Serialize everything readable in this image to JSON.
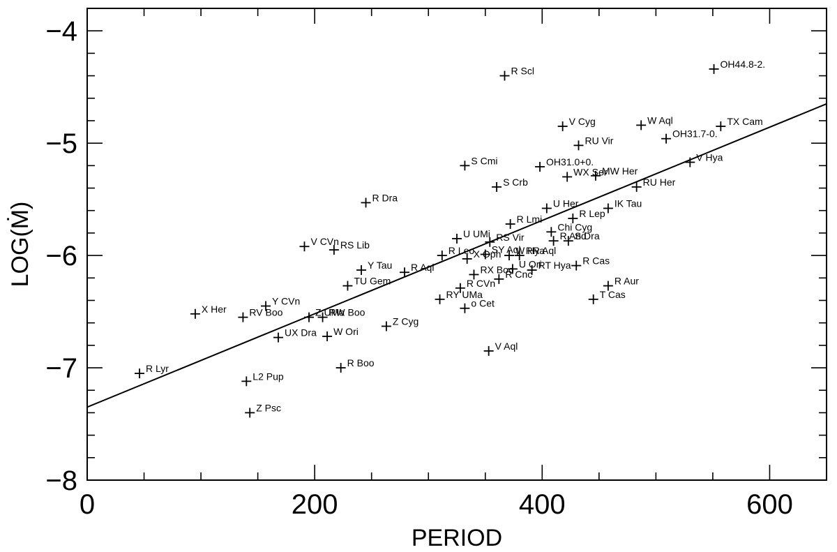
{
  "chart_data": {
    "type": "scatter",
    "title": "",
    "xlabel": "PERIOD",
    "ylabel": "LOG(Ṁ)",
    "xlim": [
      0,
      650
    ],
    "ylim": [
      -8,
      -3.8
    ],
    "x_ticks": [
      {
        "value": 0,
        "label": "0"
      },
      {
        "value": 200,
        "label": "200"
      },
      {
        "value": 400,
        "label": "400"
      },
      {
        "value": 600,
        "label": "600"
      }
    ],
    "y_ticks": [
      {
        "value": -4,
        "label": "−4"
      },
      {
        "value": -5,
        "label": "−5"
      },
      {
        "value": -6,
        "label": "−6"
      },
      {
        "value": -7,
        "label": "−7"
      },
      {
        "value": -8,
        "label": "−8"
      }
    ],
    "x_minor_step": 50,
    "y_minor_step": 0.2,
    "fit_line": {
      "x": [
        0,
        650
      ],
      "y": [
        -7.35,
        -4.65
      ]
    },
    "points": [
      {
        "name": "R Lyr",
        "x": 46,
        "y": -7.05
      },
      {
        "name": "X Her",
        "x": 95,
        "y": -6.52
      },
      {
        "name": "RV Boo",
        "x": 137,
        "y": -6.55
      },
      {
        "name": "Y CVn",
        "x": 157,
        "y": -6.45
      },
      {
        "name": "L2 Pup",
        "x": 140,
        "y": -7.12
      },
      {
        "name": "Z Psc",
        "x": 143,
        "y": -7.4
      },
      {
        "name": "UX Dra",
        "x": 168,
        "y": -6.73
      },
      {
        "name": "V CVn",
        "x": 191,
        "y": -5.92
      },
      {
        "name": "RS Lib",
        "x": 217,
        "y": -5.95
      },
      {
        "name": "Z UMa",
        "x": 195,
        "y": -6.55
      },
      {
        "name": "RW Boo",
        "x": 207,
        "y": -6.55
      },
      {
        "name": "W Ori",
        "x": 211,
        "y": -6.72
      },
      {
        "name": "R Boo",
        "x": 223,
        "y": -7.0
      },
      {
        "name": "TU Gem",
        "x": 229,
        "y": -6.27
      },
      {
        "name": "Y Tau",
        "x": 241,
        "y": -6.13
      },
      {
        "name": "R Dra",
        "x": 245,
        "y": -5.53
      },
      {
        "name": "Z Cyg",
        "x": 263,
        "y": -6.63
      },
      {
        "name": "R Aql",
        "x": 279,
        "y": -6.15
      },
      {
        "name": "RY UMa",
        "x": 310,
        "y": -6.39
      },
      {
        "name": "R Leo",
        "x": 312,
        "y": -6.0
      },
      {
        "name": "U UMi",
        "x": 325,
        "y": -5.85
      },
      {
        "name": "R CVn",
        "x": 328,
        "y": -6.29
      },
      {
        "name": "S Cmi",
        "x": 332,
        "y": -5.2
      },
      {
        "name": "o Cet",
        "x": 332,
        "y": -6.47
      },
      {
        "name": "X Oph",
        "x": 334,
        "y": -6.03
      },
      {
        "name": "RX Boo",
        "x": 340,
        "y": -6.17
      },
      {
        "name": "SY Aql",
        "x": 350,
        "y": -5.99
      },
      {
        "name": "V Aql",
        "x": 353,
        "y": -6.85
      },
      {
        "name": "RS Vir",
        "x": 354,
        "y": -5.88
      },
      {
        "name": "S Crb",
        "x": 360,
        "y": -5.39
      },
      {
        "name": "R Cnc",
        "x": 362,
        "y": -6.21
      },
      {
        "name": "R Scl",
        "x": 367,
        "y": -4.4
      },
      {
        "name": "W Hya",
        "x": 371,
        "y": -6.0
      },
      {
        "name": "R Lmi",
        "x": 372,
        "y": -5.72
      },
      {
        "name": "U Ori",
        "x": 374,
        "y": -6.12
      },
      {
        "name": "RR Aql",
        "x": 380,
        "y": -6.0
      },
      {
        "name": "RT Hya",
        "x": 391,
        "y": -6.13
      },
      {
        "name": "OH31.0+0.",
        "x": 398,
        "y": -5.21
      },
      {
        "name": "U Her",
        "x": 404,
        "y": -5.58
      },
      {
        "name": "Chi Cyg",
        "x": 408,
        "y": -5.79
      },
      {
        "name": "R And",
        "x": 410,
        "y": -5.87
      },
      {
        "name": "V Cyg",
        "x": 418,
        "y": -4.85
      },
      {
        "name": "WX Ser",
        "x": 422,
        "y": -5.3
      },
      {
        "name": "S Dra",
        "x": 423,
        "y": -5.87
      },
      {
        "name": "R Lep",
        "x": 427,
        "y": -5.67
      },
      {
        "name": "R Cas",
        "x": 430,
        "y": -6.09
      },
      {
        "name": "RU Vir",
        "x": 432,
        "y": -5.02
      },
      {
        "name": "T Cas",
        "x": 445,
        "y": -6.39
      },
      {
        "name": "MW Her",
        "x": 447,
        "y": -5.29
      },
      {
        "name": "IK Tau",
        "x": 458,
        "y": -5.58
      },
      {
        "name": "R Aur",
        "x": 458,
        "y": -6.27
      },
      {
        "name": "RU Her",
        "x": 483,
        "y": -5.39
      },
      {
        "name": "W Aql",
        "x": 487,
        "y": -4.84
      },
      {
        "name": "OH31.7-0.",
        "x": 509,
        "y": -4.96
      },
      {
        "name": "V Hya",
        "x": 530,
        "y": -5.17
      },
      {
        "name": "OH44.8-2.",
        "x": 551,
        "y": -4.34
      },
      {
        "name": "TX Cam",
        "x": 557,
        "y": -4.85
      }
    ],
    "grid": false,
    "legend": false
  }
}
